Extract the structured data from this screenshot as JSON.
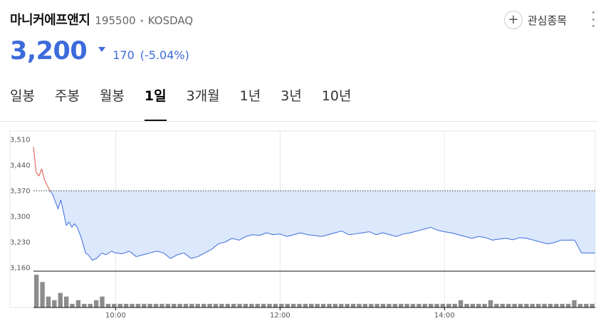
{
  "header": {
    "name": "마니커에프앤지",
    "code": "195500",
    "separator": "•",
    "market": "KOSDAQ",
    "watch_label": "관심종목"
  },
  "price": {
    "current": "3,200",
    "change": "170",
    "change_rate": "(-5.04%)",
    "direction": "down",
    "color": "#3c6bdc"
  },
  "tabs": [
    {
      "label": "일봉",
      "active": false
    },
    {
      "label": "주봉",
      "active": false
    },
    {
      "label": "월봉",
      "active": false
    },
    {
      "label": "1일",
      "active": true
    },
    {
      "label": "3개월",
      "active": false
    },
    {
      "label": "1년",
      "active": false
    },
    {
      "label": "3년",
      "active": false
    },
    {
      "label": "10년",
      "active": false
    }
  ],
  "chart_data": {
    "type": "line",
    "y_ticks": [
      "3,510",
      "3,440",
      "3,370",
      "3,300",
      "3,230",
      "3,160"
    ],
    "ylim": [
      3160,
      3510
    ],
    "x_ticks": [
      "10:00",
      "12:00",
      "14:00"
    ],
    "xlim_minutes": [
      540,
      950
    ],
    "reference_price": 3370,
    "colors": {
      "up": "#e0504a",
      "down": "#3c6bdc",
      "fill": "#dce8fb",
      "volume": "#8c8c8c"
    },
    "series": [
      {
        "x": [
          540,
          542,
          544,
          546,
          548,
          550,
          552,
          554,
          556,
          558,
          560,
          562,
          564,
          566,
          568,
          570,
          572,
          575,
          578,
          580,
          583,
          586,
          590,
          593,
          597,
          600,
          605,
          610,
          615,
          620,
          625,
          630,
          635,
          640,
          645,
          650,
          655,
          660,
          665,
          670,
          675,
          680,
          685,
          690,
          695,
          700,
          705,
          710,
          715,
          720,
          725,
          730,
          735,
          740,
          745,
          750,
          755,
          760,
          765,
          770,
          775,
          780,
          785,
          790,
          795,
          800,
          805,
          810,
          815,
          820,
          825,
          830,
          835,
          840,
          845,
          850,
          855,
          860,
          865,
          870,
          875,
          880,
          885,
          890,
          895,
          900,
          905,
          910,
          915,
          920,
          925,
          930,
          935,
          940,
          945,
          950
        ],
        "values": [
          3490,
          3420,
          3410,
          3430,
          3400,
          3385,
          3370,
          3360,
          3340,
          3320,
          3345,
          3310,
          3275,
          3285,
          3270,
          3280,
          3270,
          3240,
          3200,
          3195,
          3180,
          3185,
          3200,
          3195,
          3205,
          3200,
          3198,
          3205,
          3190,
          3195,
          3200,
          3205,
          3200,
          3185,
          3195,
          3200,
          3185,
          3190,
          3200,
          3210,
          3225,
          3230,
          3240,
          3235,
          3245,
          3250,
          3248,
          3255,
          3250,
          3252,
          3245,
          3250,
          3255,
          3250,
          3248,
          3245,
          3250,
          3255,
          3260,
          3250,
          3252,
          3255,
          3258,
          3250,
          3255,
          3250,
          3245,
          3252,
          3255,
          3260,
          3265,
          3270,
          3262,
          3258,
          3255,
          3250,
          3245,
          3240,
          3245,
          3242,
          3235,
          3238,
          3240,
          3236,
          3242,
          3240,
          3235,
          3230,
          3225,
          3228,
          3235,
          3235,
          3235,
          3200,
          3200,
          3200
        ]
      }
    ],
    "volume": [
      9,
      7,
      3,
      2,
      4,
      3,
      1,
      2,
      1,
      1,
      2,
      3,
      1,
      1,
      1,
      1,
      1,
      1,
      1,
      1,
      1,
      1,
      1,
      1,
      1,
      1,
      1,
      1,
      1,
      1,
      1,
      1,
      1,
      1,
      1,
      1,
      1,
      1,
      1,
      1,
      1,
      1,
      1,
      1,
      1,
      1,
      1,
      1,
      1,
      1,
      1,
      1,
      1,
      1,
      1,
      1,
      1,
      1,
      1,
      1,
      1,
      1,
      1,
      1,
      1,
      1,
      1,
      1,
      1,
      1,
      1,
      2,
      1,
      1,
      1,
      1,
      2,
      1,
      1,
      1,
      1,
      1,
      1,
      1,
      1,
      1,
      1,
      1,
      1,
      1,
      2,
      1,
      1,
      1
    ]
  }
}
